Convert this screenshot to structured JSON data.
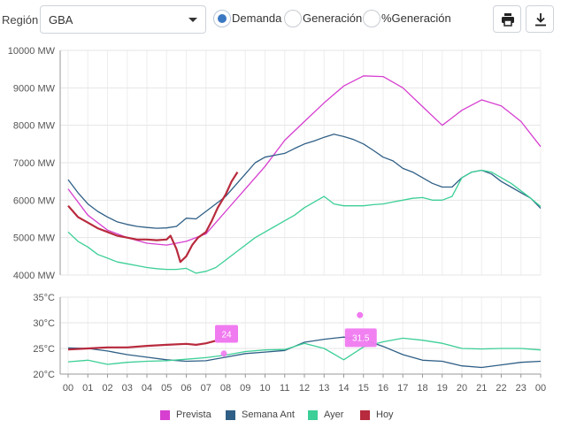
{
  "toolbar": {
    "region_label": "Región",
    "region_value": "GBA",
    "radios": [
      {
        "label": "Demanda",
        "selected": true
      },
      {
        "label": "Generación",
        "selected": false
      },
      {
        "label": "%Generación",
        "selected": false
      }
    ],
    "print_icon": "printer-icon",
    "download_icon": "download-icon"
  },
  "colors": {
    "prevista": "#d63fd0",
    "semana_ant": "#2f5f86",
    "ayer": "#3ccf97",
    "hoy": "#b82a3d",
    "bubble": "#f07af0",
    "radio_accent": "#3a78c2"
  },
  "chart_data": [
    {
      "type": "line",
      "yunit": "MW",
      "ylim": [
        4000,
        10000
      ],
      "yticks": [
        "4000 MW",
        "5000 MW",
        "6000 MW",
        "7000 MW",
        "8000 MW",
        "9000 MW",
        "10000 MW"
      ],
      "grid": true,
      "series": [
        {
          "name": "Prevista",
          "color": "#d63fd0",
          "x": [
            0,
            1,
            2,
            3,
            4,
            5,
            6,
            7,
            8,
            9,
            10,
            11,
            12,
            13,
            14,
            15,
            16,
            17,
            18,
            19,
            20,
            21,
            22,
            23,
            24
          ],
          "y": [
            6300,
            5600,
            5200,
            5000,
            4850,
            4800,
            4900,
            5100,
            5700,
            6300,
            6900,
            7600,
            8100,
            8600,
            9050,
            9320,
            9300,
            9000,
            8500,
            8000,
            8400,
            8680,
            8520,
            8100,
            7430
          ]
        },
        {
          "name": "Semana Ant",
          "color": "#2f5f86",
          "x": [
            0,
            0.5,
            1,
            1.5,
            2,
            2.5,
            3,
            3.5,
            4,
            4.5,
            5,
            5.5,
            6,
            6.5,
            7,
            7.5,
            8,
            8.5,
            9,
            9.5,
            10,
            10.5,
            11,
            11.5,
            12,
            12.5,
            13,
            13.5,
            14,
            14.5,
            15,
            15.5,
            16,
            16.5,
            17,
            17.5,
            18,
            18.5,
            19,
            19.5,
            20,
            20.5,
            21,
            21.5,
            22,
            22.5,
            23,
            23.5,
            24
          ],
          "y": [
            6550,
            6200,
            5900,
            5700,
            5550,
            5420,
            5350,
            5300,
            5270,
            5250,
            5260,
            5300,
            5520,
            5500,
            5700,
            5900,
            6100,
            6400,
            6700,
            7000,
            7150,
            7200,
            7250,
            7380,
            7500,
            7580,
            7680,
            7760,
            7700,
            7620,
            7500,
            7330,
            7150,
            7050,
            6850,
            6750,
            6600,
            6450,
            6350,
            6350,
            6600,
            6750,
            6800,
            6700,
            6500,
            6350,
            6200,
            6050,
            5780
          ]
        },
        {
          "name": "Ayer",
          "color": "#3ccf97",
          "x": [
            0,
            0.5,
            1,
            1.5,
            2,
            2.5,
            3,
            3.5,
            4,
            4.5,
            5,
            5.5,
            6,
            6.5,
            7,
            7.5,
            8,
            8.5,
            9,
            9.5,
            10,
            10.5,
            11,
            11.5,
            12,
            12.5,
            13,
            13.5,
            14,
            14.5,
            15,
            15.5,
            16,
            16.5,
            17,
            17.5,
            18,
            18.5,
            19,
            19.5,
            20,
            20.5,
            21,
            21.5,
            22,
            22.5,
            23,
            23.5,
            24
          ],
          "y": [
            5150,
            4900,
            4750,
            4550,
            4450,
            4350,
            4300,
            4250,
            4200,
            4170,
            4150,
            4150,
            4180,
            4050,
            4100,
            4200,
            4400,
            4600,
            4800,
            5000,
            5150,
            5300,
            5450,
            5600,
            5800,
            5950,
            6100,
            5900,
            5850,
            5850,
            5850,
            5880,
            5900,
            5950,
            6000,
            6050,
            6070,
            6000,
            6000,
            6100,
            6600,
            6750,
            6800,
            6750,
            6600,
            6450,
            6250,
            6050,
            5830
          ]
        },
        {
          "name": "Hoy",
          "color": "#b82a3d",
          "x": [
            0,
            0.5,
            1,
            1.5,
            2,
            2.5,
            3,
            3.5,
            4,
            4.5,
            5,
            5.2,
            5.5,
            5.7,
            6,
            6.3,
            6.6,
            7,
            7.3,
            7.6,
            8,
            8.3,
            8.6
          ],
          "y": [
            5850,
            5550,
            5400,
            5250,
            5150,
            5050,
            5000,
            4950,
            4950,
            4930,
            4950,
            5050,
            4700,
            4350,
            4500,
            4800,
            5000,
            5150,
            5450,
            5800,
            6150,
            6500,
            6750
          ]
        }
      ]
    },
    {
      "type": "line",
      "yunit": "°C",
      "ylim": [
        20,
        35
      ],
      "yticks": [
        "20°C",
        "25°C",
        "30°C",
        "35°C"
      ],
      "xticks": [
        "00",
        "01",
        "02",
        "03",
        "04",
        "05",
        "06",
        "07",
        "08",
        "09",
        "10",
        "11",
        "12",
        "13",
        "14",
        "15",
        "16",
        "17",
        "18",
        "19",
        "20",
        "21",
        "22",
        "23",
        "00"
      ],
      "grid": true,
      "series": [
        {
          "name": "Semana Ant",
          "color": "#2f5f86",
          "x": [
            0,
            1,
            2,
            3,
            4,
            5,
            6,
            7,
            8,
            9,
            10,
            11,
            12,
            13,
            14,
            15,
            16,
            17,
            18,
            19,
            20,
            21,
            22,
            23,
            24
          ],
          "y": [
            25.1,
            25.0,
            24.5,
            23.8,
            23.3,
            22.8,
            22.5,
            22.6,
            23.3,
            24.0,
            24.3,
            24.6,
            26.2,
            26.8,
            27.2,
            26.7,
            25.4,
            23.8,
            22.7,
            22.5,
            21.6,
            21.3,
            21.8,
            22.3,
            22.5
          ]
        },
        {
          "name": "Ayer",
          "color": "#3ccf97",
          "x": [
            0,
            1,
            2,
            3,
            4,
            5,
            6,
            7,
            8,
            9,
            10,
            11,
            12,
            13,
            14,
            15,
            16,
            17,
            18,
            19,
            20,
            21,
            22,
            23,
            24
          ],
          "y": [
            22.4,
            22.7,
            21.9,
            22.3,
            22.5,
            22.6,
            22.9,
            23.2,
            23.7,
            24.4,
            24.7,
            24.8,
            26.0,
            25.0,
            22.8,
            25.3,
            26.3,
            27.0,
            26.6,
            26.0,
            25.0,
            24.9,
            25.0,
            25.0,
            24.7
          ]
        },
        {
          "name": "Hoy",
          "color": "#b82a3d",
          "x": [
            0,
            1,
            2,
            3,
            4,
            5,
            6,
            6.5,
            7,
            7.5,
            8,
            8.4
          ],
          "y": [
            24.8,
            25.0,
            25.2,
            25.2,
            25.5,
            25.7,
            25.9,
            25.7,
            26.0,
            26.5,
            27.0,
            27.6
          ]
        }
      ],
      "annotations": [
        {
          "label": "24",
          "x": 8,
          "y": 24
        },
        {
          "label": "31.5",
          "x": 15,
          "y": 31.5
        }
      ]
    }
  ],
  "legend": [
    {
      "label": "Prevista",
      "color": "#d63fd0"
    },
    {
      "label": "Semana Ant",
      "color": "#2f5f86"
    },
    {
      "label": "Ayer",
      "color": "#3ccf97"
    },
    {
      "label": "Hoy",
      "color": "#b82a3d"
    }
  ]
}
